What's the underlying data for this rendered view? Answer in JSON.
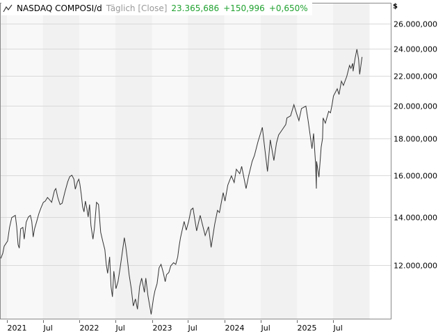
{
  "header": {
    "icon": "line-chart-icon",
    "symbol": "NASDAQ COMPOSI/d",
    "mode": "Täglich [Close]",
    "last": "23.365,686",
    "change": "+150,996",
    "change_pct": "+0,650%"
  },
  "colors": {
    "line": "#333333",
    "positive": "#1fa12f",
    "band_light": "#f8f8f8",
    "band_dark": "#f1f1f1",
    "grid": "#d9d9d9"
  },
  "chart_data": {
    "type": "line",
    "title": "NASDAQ COMPOSI/d",
    "yscale": "log",
    "ylim": [
      9800,
      27000
    ],
    "xlim": [
      "2020-11-28",
      "2025-12-10"
    ],
    "grid": true,
    "currency_label": "$",
    "yticks": [
      {
        "value": 26000,
        "label": "26.000,000"
      },
      {
        "value": 24000,
        "label": "24.000,000"
      },
      {
        "value": 22000,
        "label": "22.000,000"
      },
      {
        "value": 20000,
        "label": "20.000,000"
      },
      {
        "value": 18000,
        "label": "18.000,000"
      },
      {
        "value": 16000,
        "label": "16.000,000"
      },
      {
        "value": 14000,
        "label": "14.000,000"
      },
      {
        "value": 12000,
        "label": "12.000,000"
      }
    ],
    "xticks": [
      {
        "date": "2021-01-01",
        "label": "2021"
      },
      {
        "date": "2021-07-01",
        "label": "Jul"
      },
      {
        "date": "2022-01-01",
        "label": "2022"
      },
      {
        "date": "2022-07-01",
        "label": "Jul"
      },
      {
        "date": "2023-01-01",
        "label": "2023"
      },
      {
        "date": "2023-07-01",
        "label": "Jul"
      },
      {
        "date": "2024-01-01",
        "label": "2024"
      },
      {
        "date": "2024-07-01",
        "label": "Jul"
      },
      {
        "date": "2025-01-01",
        "label": "2025"
      },
      {
        "date": "2025-07-01",
        "label": "Jul"
      }
    ],
    "series": [
      {
        "x": [
          "2020-12-01",
          "2020-12-11",
          "2020-12-18",
          "2021-01-04",
          "2021-01-14",
          "2021-01-25",
          "2021-02-12",
          "2021-02-19",
          "2021-02-26",
          "2021-03-04",
          "2021-03-11",
          "2021-03-22",
          "2021-03-29",
          "2021-04-08",
          "2021-04-19",
          "2021-04-29",
          "2021-05-06",
          "2021-05-13",
          "2021-05-20",
          "2021-05-31",
          "2021-06-10",
          "2021-06-21",
          "2021-07-03",
          "2021-07-13",
          "2021-07-24",
          "2021-08-03",
          "2021-08-14",
          "2021-08-28",
          "2021-09-04",
          "2021-09-14",
          "2021-09-25",
          "2021-10-06",
          "2021-10-20",
          "2021-11-03",
          "2021-11-13",
          "2021-11-24",
          "2021-12-04",
          "2021-12-11",
          "2021-12-22",
          "2021-12-29",
          "2022-01-03",
          "2022-01-10",
          "2022-01-17",
          "2022-01-24",
          "2022-01-31",
          "2022-02-07",
          "2022-02-14",
          "2022-02-21",
          "2022-02-28",
          "2022-03-10",
          "2022-03-17",
          "2022-03-28",
          "2022-04-07",
          "2022-04-18",
          "2022-04-28",
          "2022-05-09",
          "2022-05-16",
          "2022-05-23",
          "2022-06-02",
          "2022-06-09",
          "2022-06-16",
          "2022-06-23",
          "2022-07-04",
          "2022-07-14",
          "2022-07-25",
          "2022-08-04",
          "2022-08-15",
          "2022-08-22",
          "2022-08-29",
          "2022-09-08",
          "2022-09-19",
          "2022-09-29",
          "2022-10-10",
          "2022-10-20",
          "2022-10-31",
          "2022-11-10",
          "2022-11-17",
          "2022-11-24",
          "2022-12-01",
          "2022-12-12",
          "2022-12-22",
          "2022-12-28",
          "2023-01-09",
          "2023-01-16",
          "2023-01-27",
          "2023-02-06",
          "2023-02-16",
          "2023-02-27",
          "2023-03-09",
          "2023-03-16",
          "2023-03-27",
          "2023-04-06",
          "2023-04-20",
          "2023-05-01",
          "2023-05-11",
          "2023-05-18",
          "2023-05-25",
          "2023-06-12",
          "2023-06-23",
          "2023-07-05",
          "2023-07-17",
          "2023-07-27",
          "2023-08-14",
          "2023-09-01",
          "2023-09-26",
          "2023-10-13",
          "2023-10-26",
          "2023-11-13",
          "2023-11-27",
          "2023-12-07",
          "2023-12-26",
          "2024-01-04",
          "2024-01-18",
          "2024-02-05",
          "2024-02-19",
          "2024-03-01",
          "2024-03-18",
          "2024-03-28",
          "2024-04-19",
          "2024-05-02",
          "2024-05-20",
          "2024-05-31",
          "2024-06-18",
          "2024-07-10",
          "2024-07-19",
          "2024-08-05",
          "2024-08-19",
          "2024-09-06",
          "2024-09-19",
          "2024-09-30",
          "2024-10-17",
          "2024-11-05",
          "2024-11-11",
          "2024-11-29",
          "2024-12-16",
          "2024-12-30",
          "2025-01-10",
          "2025-01-23",
          "2025-02-14",
          "2025-02-25",
          "2025-03-10",
          "2025-03-17",
          "2025-03-25",
          "2025-04-04",
          "2025-04-08",
          "2025-04-09",
          "2025-04-21",
          "2025-05-02",
          "2025-05-09",
          "2025-05-12",
          "2025-05-23",
          "2025-06-09",
          "2025-06-18",
          "2025-06-26",
          "2025-07-03",
          "2025-07-22",
          "2025-07-31",
          "2025-08-12",
          "2025-08-22",
          "2025-09-08",
          "2025-09-22",
          "2025-09-29",
          "2025-10-08",
          "2025-10-10",
          "2025-10-20",
          "2025-10-29",
          "2025-11-03",
          "2025-11-07",
          "2025-11-12",
          "2025-11-24"
        ],
        "values": [
          12260,
          12460,
          12750,
          12960,
          13540,
          13970,
          14070,
          13570,
          12810,
          12670,
          13480,
          13540,
          13040,
          13770,
          14000,
          14070,
          13800,
          13130,
          13480,
          13800,
          14130,
          14400,
          14670,
          14730,
          14900,
          14800,
          14670,
          15230,
          15330,
          14900,
          14570,
          14630,
          15170,
          15670,
          15930,
          16000,
          15800,
          15300,
          15670,
          15800,
          15570,
          15070,
          14470,
          14230,
          14730,
          14400,
          14000,
          14570,
          13620,
          13040,
          13480,
          14670,
          14570,
          13330,
          12960,
          12610,
          12030,
          11690,
          12320,
          11200,
          10840,
          11770,
          11130,
          11380,
          11900,
          12460,
          13100,
          12750,
          12320,
          11640,
          11130,
          10530,
          10770,
          10420,
          11200,
          11510,
          11260,
          11000,
          11510,
          10880,
          10480,
          10250,
          10810,
          11050,
          11310,
          11900,
          12030,
          11720,
          11380,
          11640,
          11720,
          11970,
          12090,
          12030,
          12320,
          12750,
          13100,
          13800,
          13420,
          13800,
          14330,
          14400,
          13390,
          14070,
          13190,
          13570,
          12700,
          13680,
          14300,
          14200,
          15130,
          14730,
          15500,
          15970,
          15630,
          16310,
          16080,
          16460,
          15330,
          15970,
          16730,
          17040,
          17810,
          18650,
          17730,
          16190,
          17920,
          16770,
          17730,
          18200,
          18490,
          18820,
          19220,
          19350,
          20050,
          19470,
          19060,
          19810,
          19960,
          19100,
          18000,
          17420,
          18290,
          16580,
          15330,
          16730,
          15900,
          17500,
          18000,
          19220,
          18900,
          19630,
          19540,
          20050,
          20620,
          21100,
          20720,
          21620,
          21330,
          21950,
          22740,
          22530,
          22890,
          22320,
          23260,
          23950,
          23530,
          23160,
          22100,
          23365.69
        ]
      }
    ]
  }
}
